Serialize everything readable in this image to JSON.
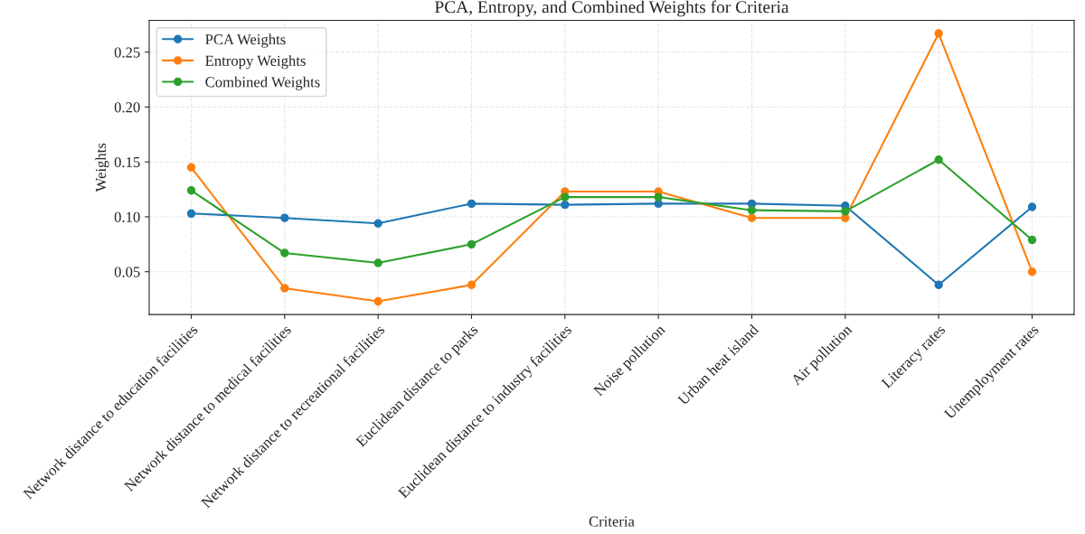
{
  "chart_data": {
    "type": "line",
    "title": "PCA, Entropy, and Combined Weights for Criteria",
    "xlabel": "Criteria",
    "ylabel": "Weights",
    "categories": [
      "Network distance to education facilities",
      "Network distance to medical facilities",
      "Network distance to recreational facilities",
      "Euclidean distance to parks",
      "Euclidean distance to industry facilities",
      "Noise pollution",
      "Urban heat island",
      "Air pollution",
      "Literacy rates",
      "Unemployment rates"
    ],
    "series": [
      {
        "name": "PCA Weights",
        "color": "#1f77b4",
        "values": [
          0.103,
          0.099,
          0.094,
          0.112,
          0.111,
          0.112,
          0.112,
          0.11,
          0.038,
          0.109
        ]
      },
      {
        "name": "Entropy Weights",
        "color": "#ff7f0e",
        "values": [
          0.145,
          0.035,
          0.023,
          0.038,
          0.123,
          0.123,
          0.099,
          0.099,
          0.267,
          0.05
        ]
      },
      {
        "name": "Combined Weights",
        "color": "#2ca02c",
        "values": [
          0.124,
          0.067,
          0.058,
          0.075,
          0.118,
          0.118,
          0.106,
          0.105,
          0.152,
          0.079
        ]
      }
    ],
    "ylim": [
      0.011,
      0.279
    ],
    "yticks": [
      {
        "value": 0.05,
        "label": "0.05"
      },
      {
        "value": 0.1,
        "label": "0.10"
      },
      {
        "value": 0.15,
        "label": "0.15"
      },
      {
        "value": 0.2,
        "label": "0.20"
      },
      {
        "value": 0.25,
        "label": "0.25"
      }
    ],
    "grid": true,
    "legend": "top left",
    "marker": "circle",
    "line_style": "solid"
  }
}
